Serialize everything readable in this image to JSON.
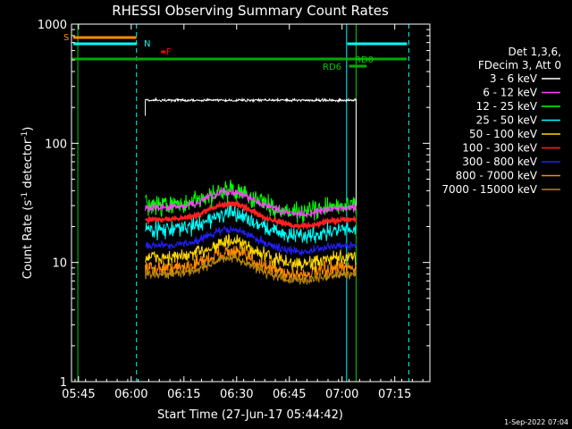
{
  "chart_data": {
    "type": "line",
    "title": "RHESSI Observing Summary Count Rates",
    "xlabel": "Start Time (27-Jun-17 05:44:42)",
    "ylabel_main": "Count Rate (s",
    "ylabel_sup1": "-1",
    "ylabel_mid": " detector",
    "ylabel_sup2": "-1",
    "ylabel_end": ")",
    "y_scale": "log",
    "ylim": [
      1,
      1000
    ],
    "xlim_minutes": [
      -2,
      100
    ],
    "x_ticks": [
      {
        "m": 0,
        "label": "05:45"
      },
      {
        "m": 15,
        "label": "06:00"
      },
      {
        "m": 30,
        "label": "06:15"
      },
      {
        "m": 45,
        "label": "06:30"
      },
      {
        "m": 60,
        "label": "06:45"
      },
      {
        "m": 75,
        "label": "07:00"
      },
      {
        "m": 90,
        "label": "07:15"
      }
    ],
    "y_ticks": [
      {
        "v": 1,
        "label": "1"
      },
      {
        "v": 10,
        "label": "10"
      },
      {
        "v": 100,
        "label": "100"
      },
      {
        "v": 1000,
        "label": "1000"
      }
    ],
    "legend_header": [
      "Det 1,3,6,",
      "FDecim 3, Att 0"
    ],
    "series": [
      {
        "name": "3 - 6 keV",
        "color": "#ffffff",
        "level": 230,
        "noise": 0.015
      },
      {
        "name": "6 - 12 keV",
        "color": "#ff40ff",
        "level": 29,
        "noise": 0.05
      },
      {
        "name": "12 - 25 keV",
        "color": "#00ff00",
        "level": 30,
        "noise": 0.12
      },
      {
        "name": "25 - 50 keV",
        "color": "#00ffff",
        "level": 19,
        "noise": 0.1
      },
      {
        "name": "50 - 100 keV",
        "color": "#ffd700",
        "level": 11,
        "noise": 0.09
      },
      {
        "name": "100 - 300 keV",
        "color": "#ff2020",
        "level": 23,
        "noise": 0.03
      },
      {
        "name": "300 - 800 keV",
        "color": "#2020ff",
        "level": 14,
        "noise": 0.05
      },
      {
        "name": "800 - 7000 keV",
        "color": "#ff8c00",
        "level": 9,
        "noise": 0.1
      },
      {
        "name": "7000 - 15000 keV",
        "color": "#b8860b",
        "level": 8,
        "noise": 0.06
      }
    ],
    "data_start_minute": 19,
    "data_end_minute": 79,
    "flags": [
      {
        "label": "S",
        "color": "#ff8c00"
      },
      {
        "label": "N",
        "color": "#00ffff"
      },
      {
        "label": "F",
        "color": "#ff0000"
      },
      {
        "label": "RD0",
        "color": "#00cc00"
      },
      {
        "label": "RD6",
        "color": "#00cc00"
      }
    ]
  },
  "timestamp": "1-Sep-2022 07:04"
}
